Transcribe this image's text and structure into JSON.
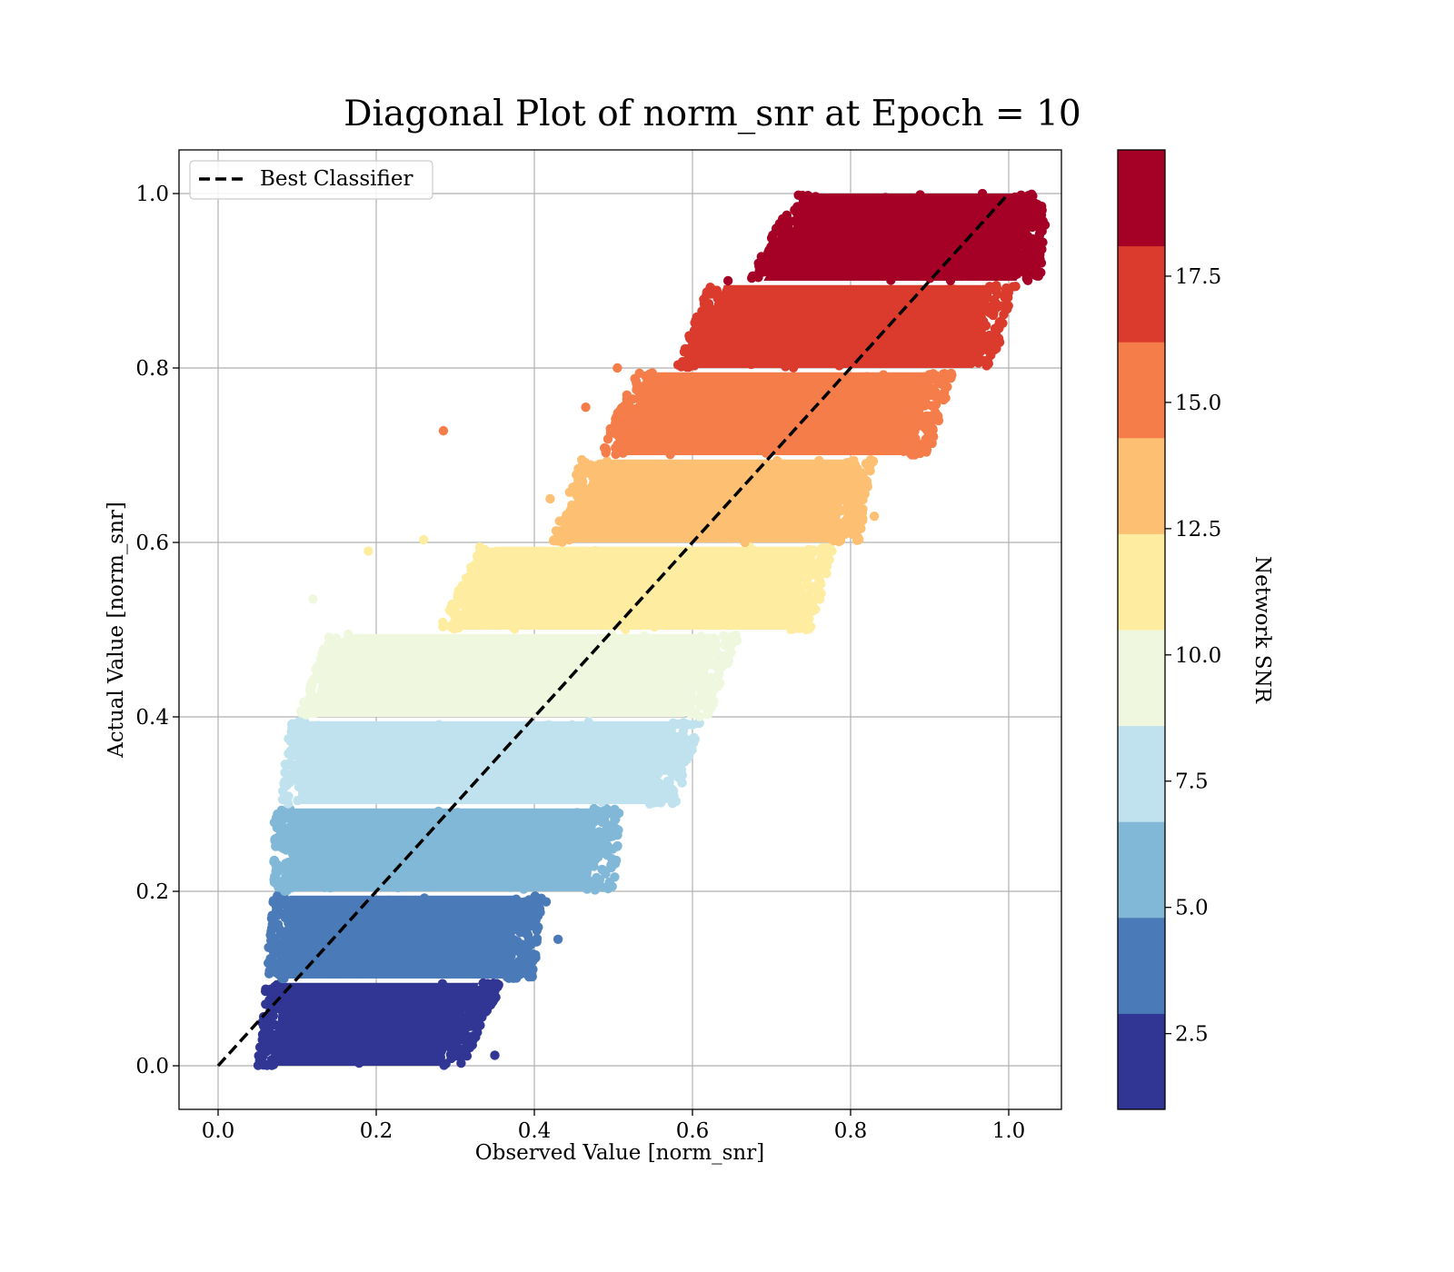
{
  "chart_data": {
    "type": "scatter",
    "title": "Diagonal Plot of norm_snr at Epoch = 10",
    "xlabel": "Observed Value [norm_snr]",
    "ylabel": "Actual Value [norm_snr]",
    "xlim": [
      -0.05,
      1.065
    ],
    "ylim": [
      -0.05,
      1.05
    ],
    "x_ticks": [
      "0.0",
      "0.2",
      "0.4",
      "0.6",
      "0.8",
      "1.0"
    ],
    "y_ticks": [
      "0.0",
      "0.2",
      "0.4",
      "0.6",
      "0.8",
      "1.0"
    ],
    "grid": true,
    "legend": {
      "placement": "top-left",
      "entries": [
        {
          "label": "Best Classifier",
          "style": "black dashed line"
        }
      ]
    },
    "reference_line": {
      "name": "Best Classifier",
      "x": [
        0.0,
        1.0
      ],
      "y": [
        0.0,
        1.0
      ],
      "color": "#000000"
    },
    "colorbar": {
      "label": "Network SNR",
      "range": [
        1.0,
        20.0
      ],
      "ticks": [
        "2.5",
        "5.0",
        "7.5",
        "10.0",
        "12.5",
        "15.0",
        "17.5"
      ],
      "tick_values": [
        2.5,
        5.0,
        7.5,
        10.0,
        12.5,
        15.0,
        17.5
      ],
      "colormap": "RdYlBu_r (discrete, 10 levels)",
      "colors": [
        "#313695",
        "#4a7ab7",
        "#82b8d7",
        "#bfe2ee",
        "#eff8df",
        "#feeda1",
        "#fdbf71",
        "#f57d4a",
        "#db3b2c",
        "#a50026"
      ]
    },
    "bands": [
      {
        "snr_level": 1,
        "color": "#313695",
        "y_range": [
          0.0,
          0.095
        ],
        "x_range_bottom": [
          0.07,
          0.28
        ],
        "x_range_top": [
          0.08,
          0.33
        ]
      },
      {
        "snr_level": 2,
        "color": "#4a7ab7",
        "y_range": [
          0.1,
          0.195
        ],
        "x_range_bottom": [
          0.08,
          0.37
        ],
        "x_range_top": [
          0.09,
          0.38
        ]
      },
      {
        "snr_level": 3,
        "color": "#82b8d7",
        "y_range": [
          0.2,
          0.295
        ],
        "x_range_bottom": [
          0.09,
          0.47
        ],
        "x_range_top": [
          0.09,
          0.48
        ]
      },
      {
        "snr_level": 4,
        "color": "#bfe2ee",
        "y_range": [
          0.3,
          0.395
        ],
        "x_range_bottom": [
          0.1,
          0.55
        ],
        "x_range_top": [
          0.11,
          0.58
        ]
      },
      {
        "snr_level": 5,
        "color": "#eff8df",
        "y_range": [
          0.4,
          0.495
        ],
        "x_range_bottom": [
          0.12,
          0.59
        ],
        "x_range_top": [
          0.16,
          0.63
        ]
      },
      {
        "snr_level": 6,
        "color": "#feeda1",
        "y_range": [
          0.5,
          0.595
        ],
        "x_range_bottom": [
          0.3,
          0.72
        ],
        "x_range_top": [
          0.35,
          0.75
        ]
      },
      {
        "snr_level": 7,
        "color": "#fdbf71",
        "y_range": [
          0.6,
          0.695
        ],
        "x_range_bottom": [
          0.44,
          0.78
        ],
        "x_range_top": [
          0.48,
          0.8
        ]
      },
      {
        "snr_level": 8,
        "color": "#f57d4a",
        "y_range": [
          0.7,
          0.795
        ],
        "x_range_bottom": [
          0.5,
          0.87
        ],
        "x_range_top": [
          0.55,
          0.9
        ]
      },
      {
        "snr_level": 9,
        "color": "#db3b2c",
        "y_range": [
          0.8,
          0.895
        ],
        "x_range_bottom": [
          0.6,
          0.95
        ],
        "x_range_top": [
          0.64,
          0.98
        ]
      },
      {
        "snr_level": 10,
        "color": "#a50026",
        "y_range": [
          0.9,
          1.0
        ],
        "x_range_bottom": [
          0.69,
          1.01
        ],
        "x_range_top": [
          0.75,
          1.02
        ]
      }
    ],
    "outliers": [
      {
        "x": 0.285,
        "y": 0.728,
        "color": "#f57d4a"
      },
      {
        "x": 0.505,
        "y": 0.8,
        "color": "#f57d4a"
      },
      {
        "x": 0.465,
        "y": 0.755,
        "color": "#f57d4a"
      },
      {
        "x": 0.645,
        "y": 0.9,
        "color": "#a50026"
      },
      {
        "x": 0.615,
        "y": 0.815,
        "color": "#db3b2c"
      },
      {
        "x": 0.35,
        "y": 0.012,
        "color": "#313695"
      },
      {
        "x": 0.43,
        "y": 0.145,
        "color": "#4a7ab7"
      },
      {
        "x": 0.415,
        "y": 0.188,
        "color": "#4a7ab7"
      },
      {
        "x": 0.475,
        "y": 0.207,
        "color": "#82b8d7"
      },
      {
        "x": 0.26,
        "y": 0.603,
        "color": "#feeda1"
      },
      {
        "x": 0.19,
        "y": 0.59,
        "color": "#feeda1"
      },
      {
        "x": 0.12,
        "y": 0.535,
        "color": "#eff8df"
      },
      {
        "x": 0.42,
        "y": 0.65,
        "color": "#fdbf71"
      },
      {
        "x": 0.83,
        "y": 0.63,
        "color": "#fdbf71"
      },
      {
        "x": 0.555,
        "y": 0.34,
        "color": "#bfe2ee"
      },
      {
        "x": 0.585,
        "y": 0.42,
        "color": "#eff8df"
      }
    ]
  }
}
